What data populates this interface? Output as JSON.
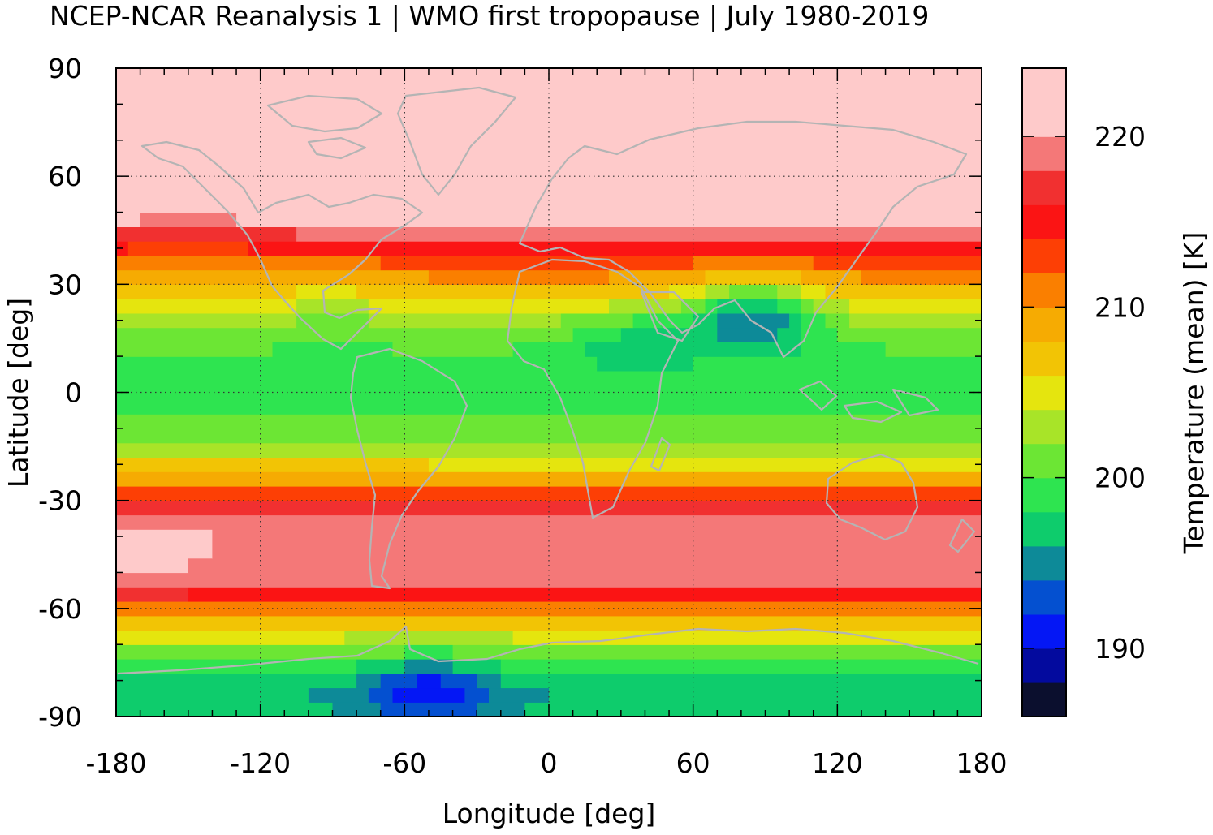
{
  "chart_data": {
    "type": "heatmap",
    "title": "NCEP-NCAR Reanalysis 1 | WMO first tropopause | July 1980-2019",
    "xlabel": "Longitude [deg]",
    "ylabel": "Latitude [deg]",
    "xlim": [
      -180,
      180
    ],
    "ylim": [
      -90,
      90
    ],
    "x_ticks": [
      -180,
      -120,
      -60,
      0,
      60,
      120,
      180
    ],
    "y_ticks": [
      -90,
      -60,
      -30,
      0,
      30,
      60,
      90
    ],
    "x_tick_labels": [
      "-180",
      "-120",
      "-60",
      "0",
      "60",
      "120",
      "180"
    ],
    "y_tick_labels": [
      "-90",
      "-60",
      "-30",
      "0",
      "30",
      "60",
      "90"
    ],
    "grid": true,
    "coastlines": true,
    "coastline_color": "#b4b4b4",
    "colorbar": {
      "label": "Temperature (mean) [K]",
      "range": [
        186,
        224
      ],
      "ticks": [
        190,
        200,
        210,
        220
      ],
      "tick_labels": [
        "190",
        "200",
        "210",
        "220"
      ],
      "levels": [
        186,
        188,
        190,
        192,
        194,
        196,
        198,
        200,
        202,
        204,
        206,
        208,
        210,
        212,
        214,
        216,
        218,
        220,
        222,
        224
      ],
      "colors": [
        "#0b0f2e",
        "#030a9e",
        "#0417f5",
        "#0450d0",
        "#0d8a98",
        "#0ecc6c",
        "#2ee450",
        "#6ce634",
        "#a8e428",
        "#e5e50e",
        "#f2c405",
        "#f6ab02",
        "#fa7f00",
        "#fd3f05",
        "#fb1414",
        "#f13030",
        "#f47878",
        "#fecaca",
        "#fecaca"
      ]
    },
    "zonal_mean_profile": {
      "latitude": [
        -90,
        -85,
        -80,
        -75,
        -70,
        -65,
        -60,
        -55,
        -50,
        -45,
        -40,
        -35,
        -30,
        -25,
        -20,
        -15,
        -10,
        -5,
        0,
        5,
        10,
        15,
        20,
        25,
        30,
        35,
        40,
        45,
        50,
        55,
        60,
        65,
        70,
        75,
        80,
        85,
        90
      ],
      "temperature_K": [
        197,
        196,
        197.5,
        200,
        203,
        206,
        211,
        217,
        219,
        219,
        219,
        218,
        215,
        210,
        206,
        202,
        200.5,
        199.5,
        200,
        199.5,
        199.5,
        201,
        203,
        206,
        209,
        212,
        215,
        219,
        222,
        223,
        223,
        223,
        223,
        223,
        223,
        223,
        223
      ]
    },
    "anomalies": [
      {
        "lon": -165,
        "lat": -42,
        "temperature_K": 221
      },
      {
        "lon": -50,
        "lat": -82,
        "temperature_K": 191
      },
      {
        "lon": 85,
        "lat": 22,
        "temperature_K": 195
      },
      {
        "lon": 35,
        "lat": 15,
        "temperature_K": 197.5
      },
      {
        "lon": -150,
        "lat": 40,
        "temperature_K": 213
      },
      {
        "lon": -90,
        "lat": 27,
        "temperature_K": 205
      },
      {
        "lon": 90,
        "lat": 62,
        "temperature_K": 223
      },
      {
        "lon": 150,
        "lat": 60,
        "temperature_K": 221
      },
      {
        "lon": -155,
        "lat": 62,
        "temperature_K": 220.5
      }
    ]
  }
}
